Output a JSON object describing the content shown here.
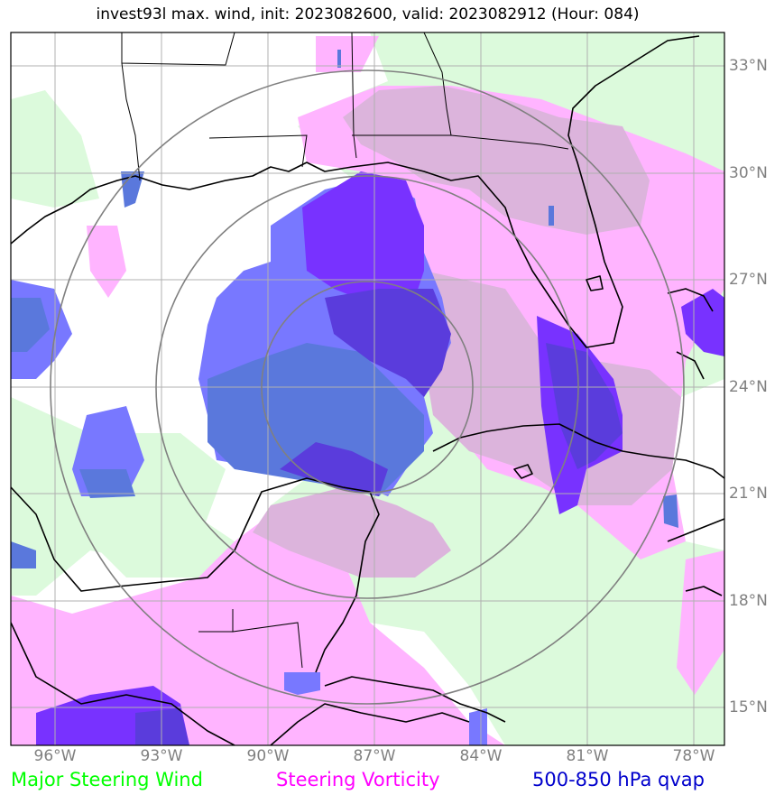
{
  "title": "invest93l max. wind, init: 2023082600, valid: 2023082912 (Hour: 084)",
  "x_ticks": [
    "96°W",
    "93°W",
    "90°W",
    "87°W",
    "84°W",
    "81°W",
    "78°W"
  ],
  "y_ticks": [
    "33°N",
    "30°N",
    "27°N",
    "24°N",
    "21°N",
    "18°N",
    "15°N"
  ],
  "legend": {
    "wind": "Major Steering Wind",
    "vorticity": "Steering Vorticity",
    "qvap": "500-850 hPa qvap"
  },
  "colors": {
    "wind": "#00ff00",
    "vorticity": "#ff00ff",
    "qvap": "#0000cc",
    "wind_fill": "#dcfadc",
    "vorticity_fill": "#ffb4ff",
    "vort_wind_overlap": "#dcb4dc",
    "qvap_light": "#7878ff",
    "qvap_mid": "#5a78dc",
    "qvap_dark": "#7832ff",
    "qvap_core": "#5a3cdc",
    "grid": "#b0b0b0",
    "rings": "#808080",
    "tick_text": "#808080"
  },
  "map": {
    "lon_range_west": [
      97.2,
      76.8
    ],
    "lat_range_north": [
      14.0,
      34.0
    ],
    "storm_center": {
      "lon_w": 87.2,
      "lat_n": 24.0
    },
    "range_rings_deg": [
      3,
      6,
      9
    ]
  }
}
